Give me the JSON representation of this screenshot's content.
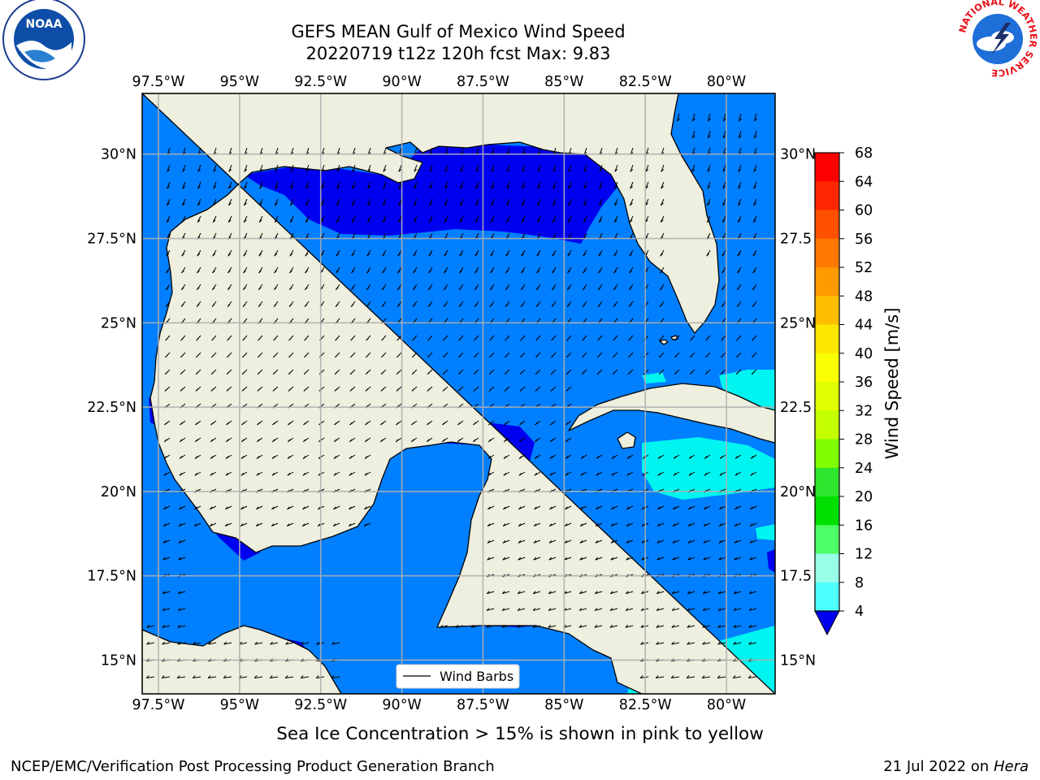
{
  "title_line1": "GEFS MEAN Gulf of Mexico Wind Speed",
  "title_line2": "20220719 t12z 120h fcst   Max: 9.83",
  "lon_ticks": [
    "97.5°W",
    "95°W",
    "92.5°W",
    "90°W",
    "87.5°W",
    "85°W",
    "82.5°W",
    "80°W"
  ],
  "lat_ticks_left": [
    "30°N",
    "27.5°N",
    "25°N",
    "22.5°N",
    "20°N",
    "17.5°N",
    "15°N"
  ],
  "lat_ticks_right": [
    "30°N",
    "27.5",
    "25°N",
    "22.5",
    "20°N",
    "17.5",
    "15°N"
  ],
  "map_extent": {
    "lon_min": -98.0,
    "lon_max": -78.5,
    "lat_min": 14.0,
    "lat_max": 31.8
  },
  "legend": {
    "label": "Wind Barbs"
  },
  "colorbar": {
    "label": "Wind Speed [m/s]",
    "ticks": [
      "68",
      "64",
      "60",
      "56",
      "52",
      "48",
      "44",
      "40",
      "36",
      "32",
      "28",
      "24",
      "20",
      "16",
      "12",
      "8",
      "4"
    ],
    "colors": [
      "#ff0000",
      "#ff2600",
      "#ff5000",
      "#ff7800",
      "#ff9a00",
      "#ffbf00",
      "#ffe600",
      "#f7ff00",
      "#e0ff00",
      "#c4ff00",
      "#7fff00",
      "#2ee62e",
      "#00e000",
      "#4dff66",
      "#99ffe6",
      "#4dffff",
      "#00f5f0",
      "#007fff"
    ],
    "extend_color": "#0000f0"
  },
  "wind_speed_colors": {
    "lt4": "#0000f0",
    "4_8": "#007fff",
    "8_12": "#00f5f0",
    "land": "#efefdf",
    "ocean_fallback": "#007fff"
  },
  "sea_ice_note": "Sea Ice Concentration > 15% is shown in pink to yellow",
  "credit": "NCEP/EMC/Verification Post Processing Product Generation Branch",
  "run_date": "21 Jul 2022 on ",
  "run_host": "Hera",
  "logos": {
    "left": "NOAA",
    "right": "NATIONAL WEATHER SERVICE"
  }
}
